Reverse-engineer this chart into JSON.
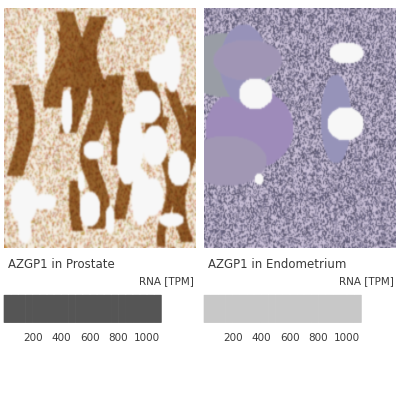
{
  "title_left": "AZGP1 in Prostate",
  "title_right": "AZGP1 in Endometrium",
  "rna_label": "RNA [TPM]",
  "tick_labels": [
    200,
    400,
    600,
    800,
    1000
  ],
  "n_segments": 22,
  "segment_color_left": "#555555",
  "segment_color_right": "#c8c8c8",
  "bg_color": "#ffffff",
  "text_color": "#3a3a3a",
  "label_fontsize": 8.5,
  "tick_fontsize": 7.5,
  "rna_fontsize": 7.5,
  "prostate_bg": [
    0.96,
    0.93,
    0.88
  ],
  "prostate_dark": [
    0.55,
    0.35,
    0.15
  ],
  "prostate_mid": [
    0.75,
    0.55,
    0.3
  ],
  "endometrium_bg": [
    0.8,
    0.76,
    0.85
  ],
  "endometrium_dark": [
    0.5,
    0.48,
    0.62
  ],
  "endometrium_mid": [
    0.65,
    0.62,
    0.75
  ]
}
